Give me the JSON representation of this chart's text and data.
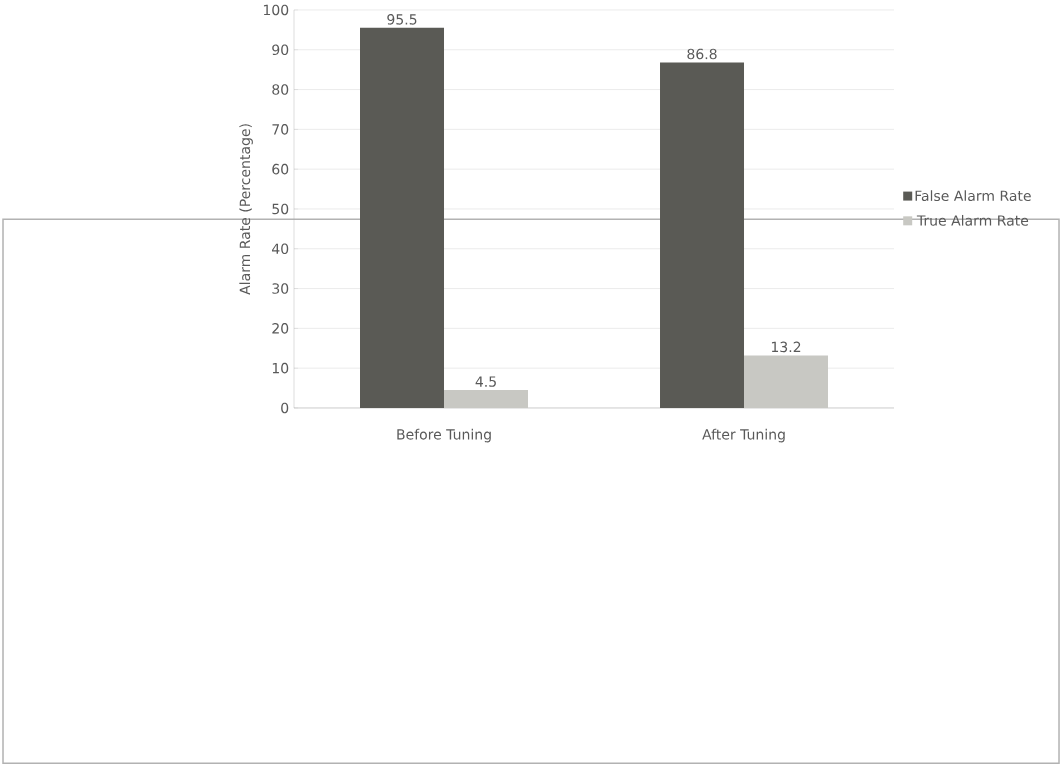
{
  "chart_data": {
    "type": "bar",
    "ylabel": "Alarm Rate (Percentage)",
    "categories": [
      "Before Tuning",
      "After Tuning"
    ],
    "series": [
      {
        "name": "False Alarm Rate",
        "color": "#5a5a55",
        "values": [
          95.5,
          86.8
        ]
      },
      {
        "name": "True Alarm Rate",
        "color": "#c8c8c3",
        "values": [
          4.5,
          13.2
        ]
      }
    ],
    "ylim": [
      0,
      100
    ],
    "yticks": [
      0,
      10,
      20,
      30,
      40,
      50,
      60,
      70,
      80,
      90,
      100
    ],
    "grid": "y",
    "legend": "right",
    "data_labels": true
  }
}
